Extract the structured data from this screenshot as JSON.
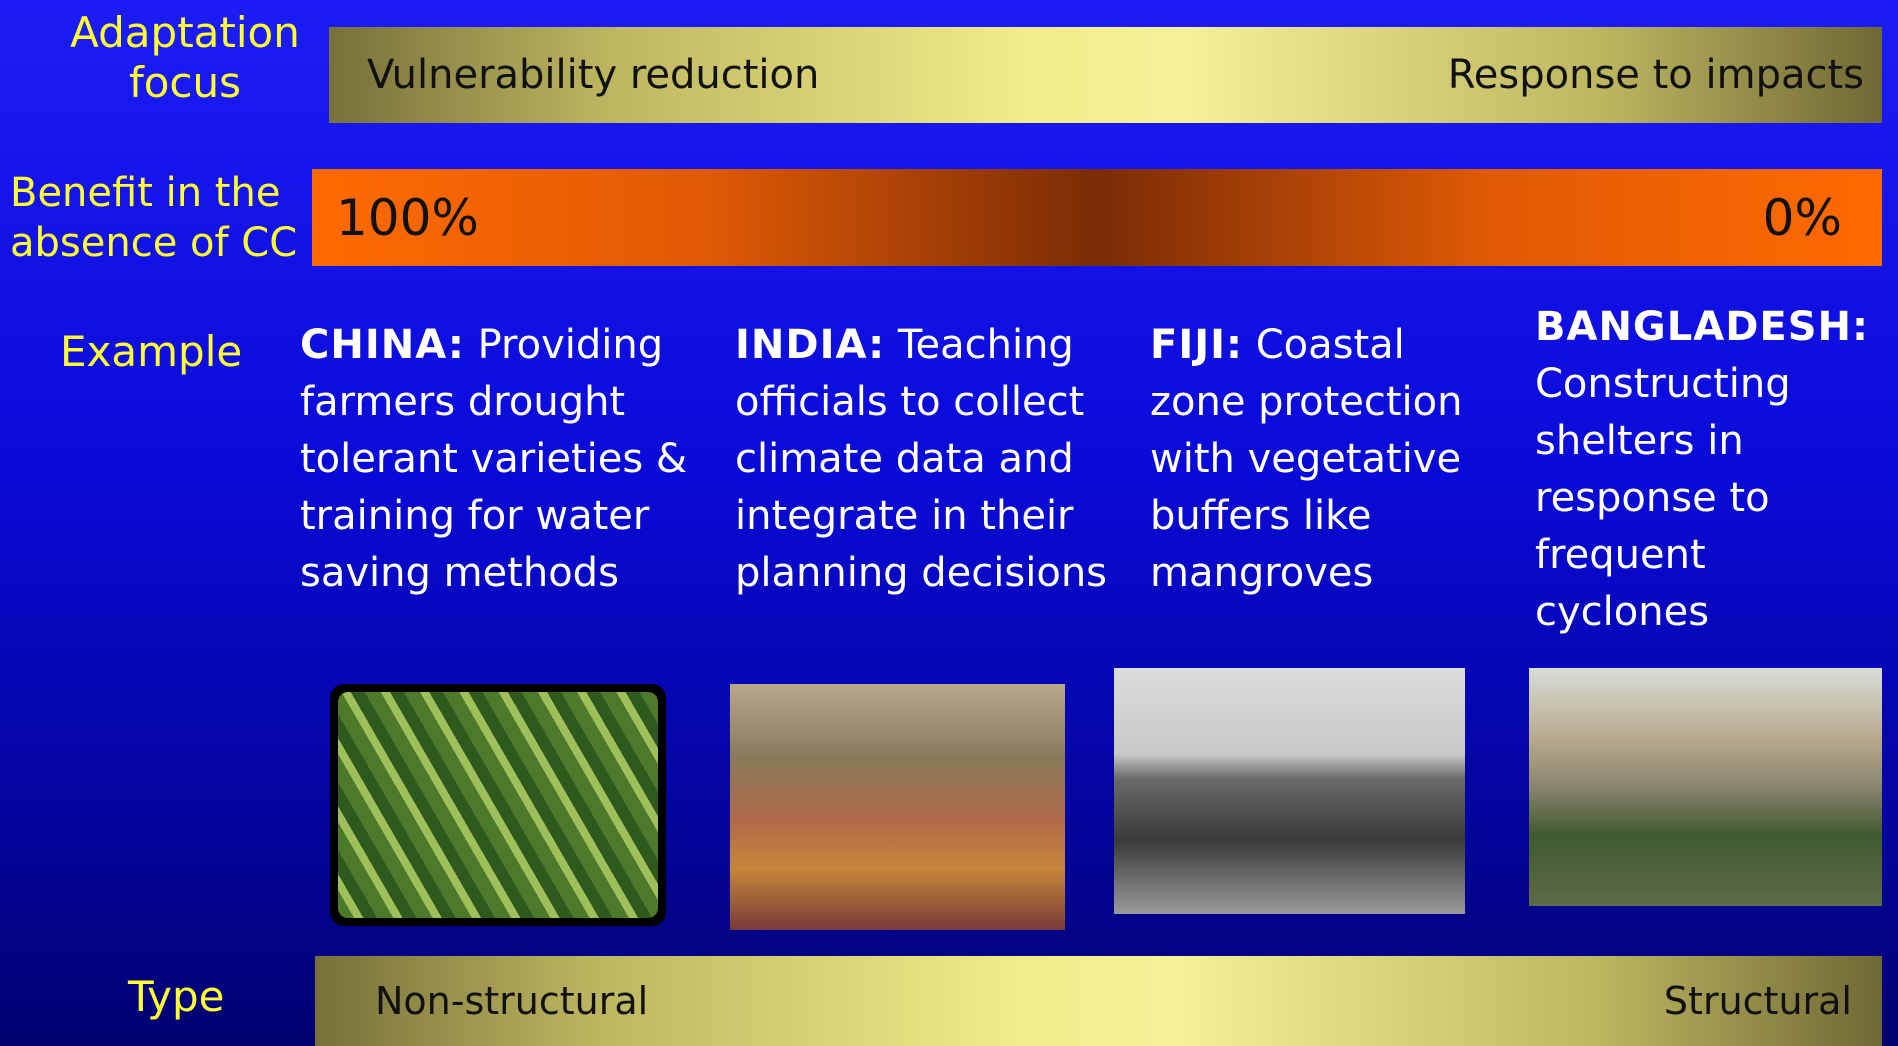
{
  "rows": [
    {
      "label": "Adaptation focus",
      "left": "Vulnerability reduction",
      "right": "Response to impacts"
    },
    {
      "label": "Benefit in the absence of CC",
      "left": "100%",
      "right": "0%"
    },
    {
      "label": "Example"
    },
    {
      "label": "Type",
      "left": "Non-structural",
      "right": "Structural"
    }
  ],
  "examples": [
    {
      "country": "CHINA:",
      "text": "Providing farmers drought tolerant varieties & training for water saving methods"
    },
    {
      "country": "INDIA:",
      "text": "Teaching officials to collect climate data and integrate in their planning decisions"
    },
    {
      "country": "FIJI:",
      "text": "Coastal zone protection with vegetative buffers like mangroves"
    },
    {
      "country": "BANGLADESH:",
      "text": "Constructing shelters in response to frequent cyclones"
    }
  ]
}
